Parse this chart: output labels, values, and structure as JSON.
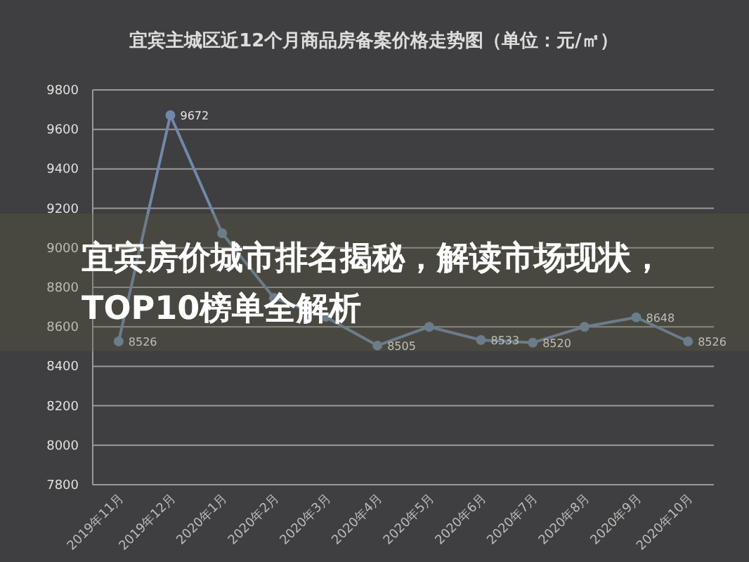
{
  "chart_data": {
    "type": "line",
    "title": "宜宾主城区近12个月商品房备案价格走势图（单位：元/㎡）",
    "categories": [
      "2019年11月",
      "2019年12月",
      "2020年1月",
      "2020年2月",
      "2020年3月",
      "2020年4月",
      "2020年5月",
      "2020年6月",
      "2020年7月",
      "2020年8月",
      "2020年9月",
      "2020年10月"
    ],
    "series": [
      {
        "color": "#7088aa",
        "values": [
          8526,
          9672,
          9074,
          8747,
          8650,
          8505,
          8600,
          8533,
          8520,
          8600,
          8648,
          8526
        ],
        "value_labels": [
          "8526",
          "9672",
          null,
          null,
          null,
          "8505",
          null,
          "8533",
          "8520",
          null,
          "8648",
          "8526"
        ]
      }
    ],
    "ylim": [
      7800,
      9800
    ],
    "yticks": [
      7800,
      8000,
      8200,
      8400,
      8600,
      8800,
      9000,
      9200,
      9400,
      9600,
      9800
    ],
    "grid": "y",
    "marker": "circle",
    "annotations": [
      "宜宾房价城市排名揭秘，解读市场现状，TOP10榜单全解析"
    ]
  }
}
